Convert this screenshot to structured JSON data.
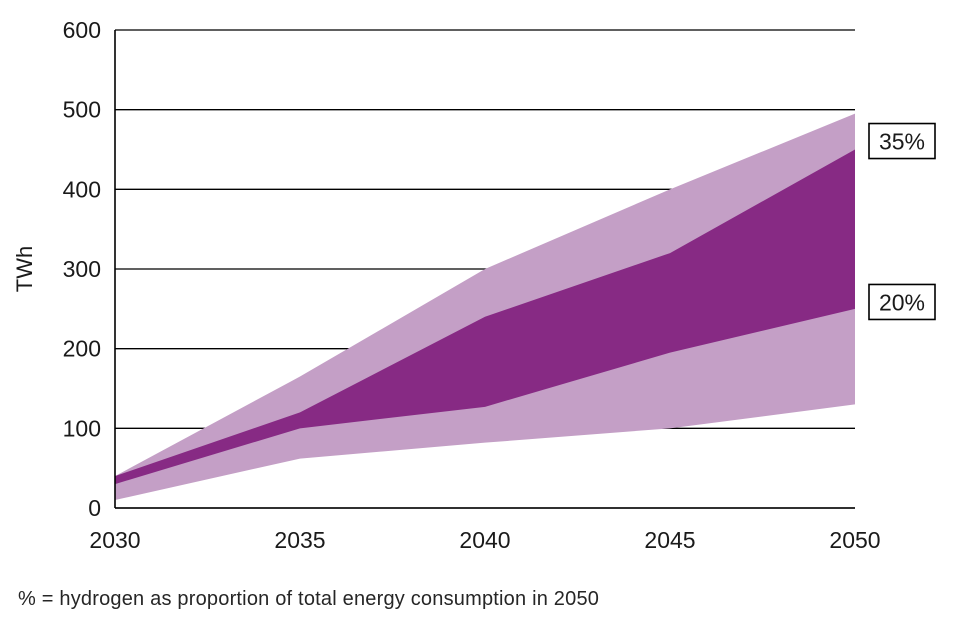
{
  "chart_data": {
    "type": "area",
    "title": "",
    "xlabel": "",
    "ylabel": "TWh",
    "x": [
      2030,
      2035,
      2040,
      2045,
      2050
    ],
    "x_tick_labels": [
      "2030",
      "2035",
      "2040",
      "2045",
      "2050"
    ],
    "ylim": [
      0,
      600
    ],
    "y_ticks": [
      0,
      100,
      200,
      300,
      400,
      500,
      600
    ],
    "grid": "horizontal",
    "legend_position": "none",
    "bands": [
      {
        "name": "outer-range-light-purple",
        "color": "#c49fc6",
        "upper": [
          40,
          165,
          300,
          400,
          495
        ],
        "lower": [
          10,
          62,
          82,
          100,
          130
        ]
      },
      {
        "name": "inner-range-dark-purple",
        "color": "#872a84",
        "upper": [
          40,
          120,
          240,
          320,
          450
        ],
        "lower": [
          30,
          100,
          127,
          195,
          250
        ]
      }
    ],
    "annotations": [
      {
        "label": "35%",
        "y_value": 460
      },
      {
        "label": "20%",
        "y_value": 258
      }
    ],
    "caption": "% = hydrogen as proportion of total energy consumption in 2050"
  },
  "colors": {
    "light_band": "#c49fc6",
    "dark_band": "#872a84",
    "axis": "#000000",
    "annotation_border": "#000000",
    "annotation_background": "#ffffff"
  }
}
